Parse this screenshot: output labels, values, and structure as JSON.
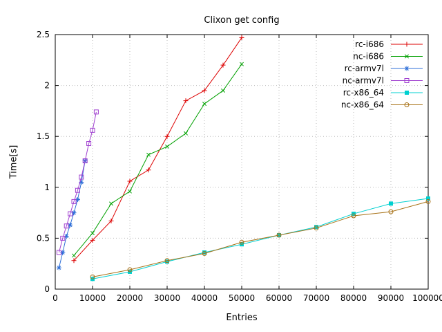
{
  "chart_data": {
    "type": "line",
    "title": "Clixon get config",
    "xlabel": "Entries",
    "ylabel": "Time[s]",
    "xlim": [
      0,
      100000
    ],
    "ylim": [
      0,
      2.5
    ],
    "xticks": [
      0,
      10000,
      20000,
      30000,
      40000,
      50000,
      60000,
      70000,
      80000,
      90000,
      100000
    ],
    "yticks": [
      0,
      0.5,
      1,
      1.5,
      2,
      2.5
    ],
    "grid": true,
    "legend_position": "top-right-inside",
    "series": [
      {
        "name": "rc-i686",
        "color": "#dd0000",
        "marker": "plus",
        "x": [
          5000,
          10000,
          15000,
          20000,
          25000,
          30000,
          35000,
          40000,
          45000,
          50000
        ],
        "y": [
          0.28,
          0.48,
          0.67,
          1.06,
          1.17,
          1.5,
          1.85,
          1.95,
          2.2,
          2.47
        ]
      },
      {
        "name": "nc-i686",
        "color": "#00a000",
        "marker": "cross",
        "x": [
          5000,
          10000,
          15000,
          20000,
          25000,
          30000,
          35000,
          40000,
          45000,
          50000
        ],
        "y": [
          0.33,
          0.55,
          0.84,
          0.96,
          1.32,
          1.4,
          1.53,
          1.82,
          1.95,
          2.21
        ]
      },
      {
        "name": "rc-armv7l",
        "color": "#2e6fd8",
        "marker": "asterisk",
        "x": [
          1000,
          2000,
          3000,
          4000,
          5000,
          6000,
          7000,
          8000
        ],
        "y": [
          0.21,
          0.36,
          0.52,
          0.63,
          0.75,
          0.88,
          1.05,
          1.26
        ]
      },
      {
        "name": "nc-armv7l",
        "color": "#a040d0",
        "marker": "square-open",
        "x": [
          1000,
          2000,
          3000,
          4000,
          5000,
          6000,
          7000,
          8000,
          9000,
          10000,
          11000
        ],
        "y": [
          0.36,
          0.5,
          0.62,
          0.74,
          0.86,
          0.97,
          1.1,
          1.26,
          1.43,
          1.56,
          1.74
        ]
      },
      {
        "name": "rc-x86_64",
        "color": "#00d0d0",
        "marker": "square-filled",
        "x": [
          10000,
          20000,
          30000,
          40000,
          50000,
          60000,
          70000,
          80000,
          90000,
          100000
        ],
        "y": [
          0.1,
          0.17,
          0.27,
          0.36,
          0.44,
          0.53,
          0.61,
          0.74,
          0.84,
          0.89
        ]
      },
      {
        "name": "nc-x86_64",
        "color": "#a87217",
        "marker": "circle-open",
        "x": [
          10000,
          20000,
          30000,
          40000,
          50000,
          60000,
          70000,
          80000,
          90000,
          100000
        ],
        "y": [
          0.12,
          0.19,
          0.28,
          0.35,
          0.46,
          0.53,
          0.6,
          0.72,
          0.76,
          0.86
        ]
      }
    ]
  }
}
